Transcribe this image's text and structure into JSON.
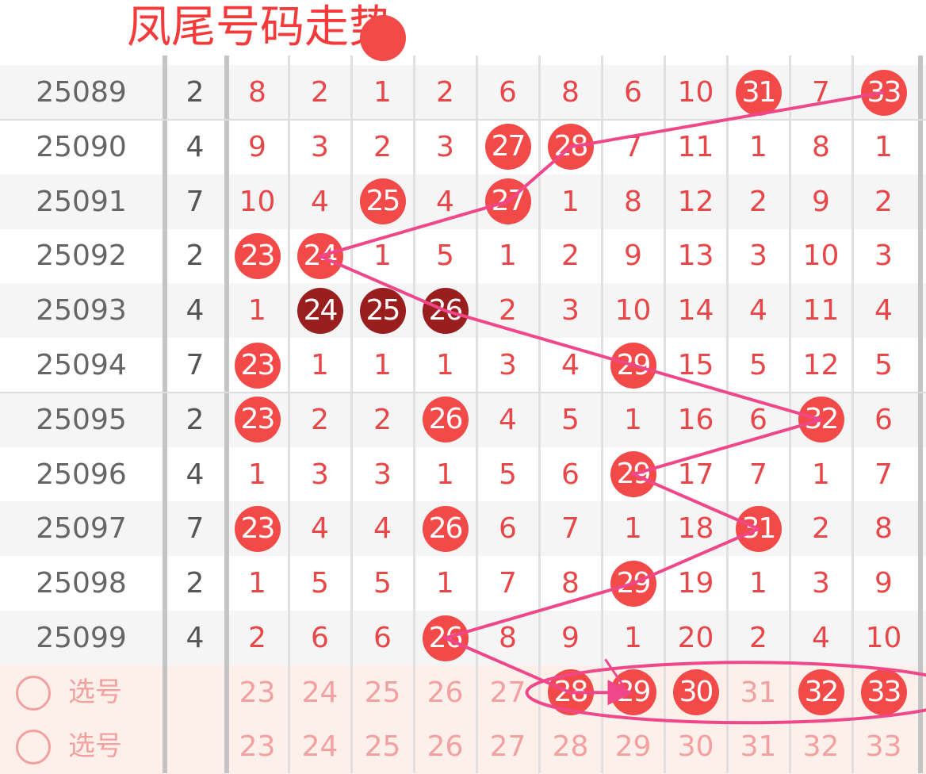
{
  "title_overlay": "凤尾号码走势",
  "columns": [
    "23",
    "24",
    "25",
    "26",
    "27",
    "28",
    "29",
    "30",
    "31",
    "32",
    "33"
  ],
  "colors": {
    "ball": "#f24a48",
    "ball_dark": "#9b1e1e",
    "miss_text": "#e8474a",
    "trend_line": "#f0468a",
    "select_bg": "#fdefe9"
  },
  "rows": [
    {
      "issue": "25089",
      "sum": "2",
      "cells": [
        "8",
        "2",
        "1",
        "2",
        "6",
        "8",
        "6",
        "10",
        "31",
        "7",
        "33"
      ],
      "hits": [
        8,
        10
      ],
      "dark": []
    },
    {
      "issue": "25090",
      "sum": "4",
      "cells": [
        "9",
        "3",
        "2",
        "3",
        "27",
        "28",
        "7",
        "11",
        "1",
        "8",
        "1"
      ],
      "hits": [
        4,
        5
      ],
      "dark": []
    },
    {
      "issue": "25091",
      "sum": "7",
      "cells": [
        "10",
        "4",
        "25",
        "4",
        "27",
        "1",
        "8",
        "12",
        "2",
        "9",
        "2"
      ],
      "hits": [
        2,
        4
      ],
      "dark": []
    },
    {
      "issue": "25092",
      "sum": "2",
      "cells": [
        "23",
        "24",
        "1",
        "5",
        "1",
        "2",
        "9",
        "13",
        "3",
        "10",
        "3"
      ],
      "hits": [
        0,
        1
      ],
      "dark": []
    },
    {
      "issue": "25093",
      "sum": "4",
      "cells": [
        "1",
        "24",
        "25",
        "26",
        "2",
        "3",
        "10",
        "14",
        "4",
        "11",
        "4"
      ],
      "hits": [
        1,
        2,
        3
      ],
      "dark": [
        1,
        2,
        3
      ]
    },
    {
      "issue": "25094",
      "sum": "7",
      "cells": [
        "23",
        "1",
        "1",
        "1",
        "3",
        "4",
        "29",
        "15",
        "5",
        "12",
        "5"
      ],
      "hits": [
        0,
        6
      ],
      "dark": []
    },
    {
      "issue": "25095",
      "sum": "2",
      "cells": [
        "23",
        "2",
        "2",
        "26",
        "4",
        "5",
        "1",
        "16",
        "6",
        "32",
        "6"
      ],
      "hits": [
        0,
        3,
        9
      ],
      "dark": []
    },
    {
      "issue": "25096",
      "sum": "4",
      "cells": [
        "1",
        "3",
        "3",
        "1",
        "5",
        "6",
        "29",
        "17",
        "7",
        "1",
        "7"
      ],
      "hits": [
        6
      ],
      "dark": []
    },
    {
      "issue": "25097",
      "sum": "7",
      "cells": [
        "23",
        "4",
        "4",
        "26",
        "6",
        "7",
        "1",
        "18",
        "31",
        "2",
        "8"
      ],
      "hits": [
        0,
        3,
        8
      ],
      "dark": []
    },
    {
      "issue": "25098",
      "sum": "2",
      "cells": [
        "1",
        "5",
        "5",
        "1",
        "7",
        "8",
        "29",
        "19",
        "1",
        "3",
        "9"
      ],
      "hits": [
        6
      ],
      "dark": []
    },
    {
      "issue": "25099",
      "sum": "4",
      "cells": [
        "2",
        "6",
        "6",
        "26",
        "8",
        "9",
        "1",
        "20",
        "2",
        "4",
        "10"
      ],
      "hits": [
        3
      ],
      "dark": []
    }
  ],
  "select_rows": [
    {
      "label": "选号",
      "selected": [
        "28",
        "29",
        "30",
        "32",
        "33"
      ]
    },
    {
      "label": "选号",
      "selected": []
    }
  ],
  "trend_path": [
    [
      "25089",
      "33"
    ],
    [
      "25090",
      "28"
    ],
    [
      "25091",
      "27"
    ],
    [
      "25092",
      "24"
    ],
    [
      "25093",
      "26"
    ],
    [
      "25094",
      "29"
    ],
    [
      "25095",
      "32"
    ],
    [
      "25096",
      "29"
    ],
    [
      "25097",
      "31"
    ],
    [
      "25098",
      "29"
    ],
    [
      "25099",
      "26"
    ],
    [
      "select",
      "28"
    ]
  ],
  "trend_arrow_to": [
    "select",
    "29"
  ],
  "circled_group": [
    "28",
    "33"
  ]
}
